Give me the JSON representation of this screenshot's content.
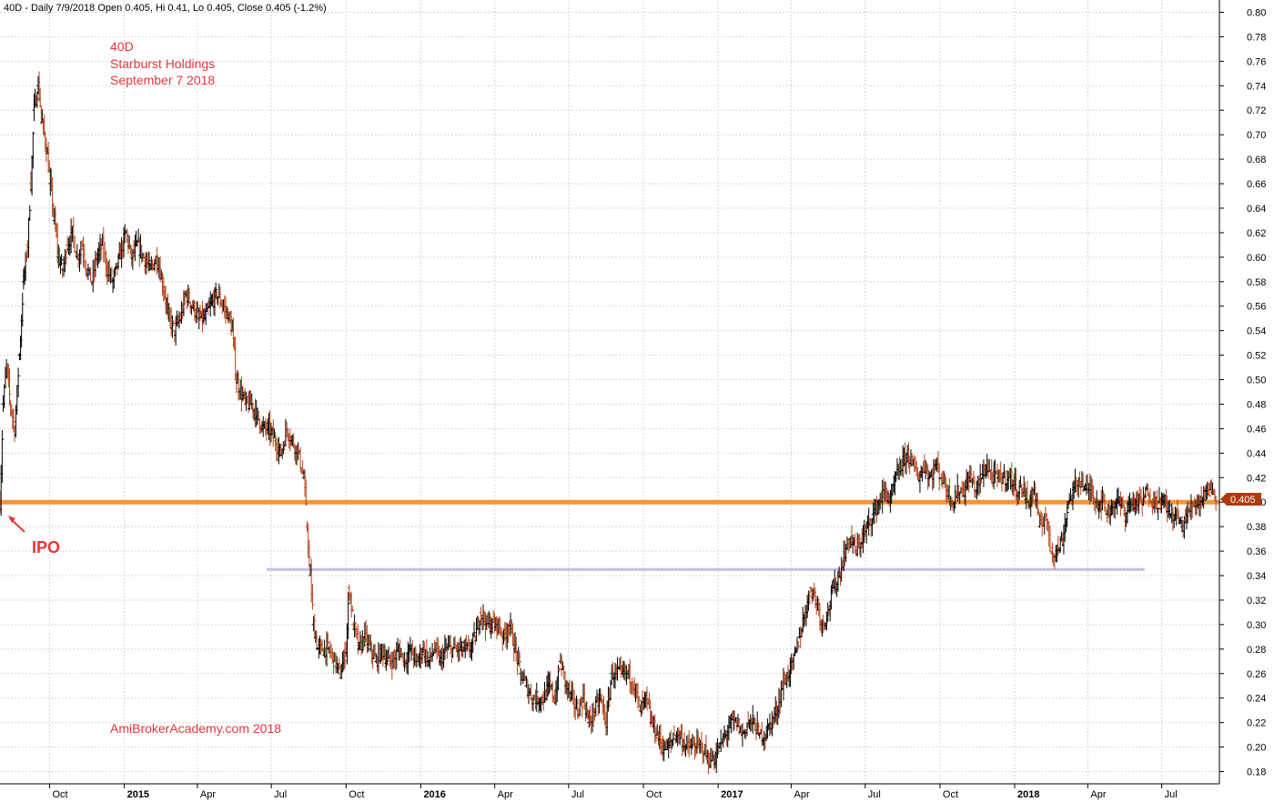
{
  "header": "40D - Daily 7/9/2018 Open 0.405, Hi 0.41, Lo 0.405, Close 0.405 (-1.2%)",
  "annotations": {
    "ticker": "40D",
    "company": "Starburst Holdings",
    "date": "September 7 2018",
    "ipo": "IPO",
    "watermark": "AmiBrokerAcademy.com  2018"
  },
  "last_price_tag": "0.405",
  "colors": {
    "up_bar": "#000000",
    "down_bar": "#b5451b",
    "ipo_line": "#f3963a",
    "support_line": "#c9bde3",
    "annotation": "#e8363a",
    "grid": "#d8d8d8",
    "price_tag": "#b03a10"
  },
  "chart_data": {
    "type": "ohlc",
    "title": "40D - Daily 7/9/2018",
    "ylim": [
      0.17,
      0.81
    ],
    "y_ticks": [
      "0.18",
      "0.20",
      "0.22",
      "0.24",
      "0.26",
      "0.28",
      "0.30",
      "0.32",
      "0.34",
      "0.36",
      "0.38",
      "0.40",
      "0.42",
      "0.44",
      "0.46",
      "0.48",
      "0.50",
      "0.52",
      "0.54",
      "0.56",
      "0.58",
      "0.60",
      "0.62",
      "0.64",
      "0.66",
      "0.68",
      "0.70",
      "0.72",
      "0.74",
      "0.76",
      "0.78",
      "0.80"
    ],
    "x_range": [
      "2014-08-01",
      "2018-09-10"
    ],
    "x_ticks": [
      {
        "label": "Oct",
        "date": "2014-10-01",
        "bold": false
      },
      {
        "label": "2015",
        "date": "2015-01-01",
        "bold": true
      },
      {
        "label": "Apr",
        "date": "2015-04-01",
        "bold": false
      },
      {
        "label": "Jul",
        "date": "2015-07-01",
        "bold": false
      },
      {
        "label": "Oct",
        "date": "2015-10-01",
        "bold": false
      },
      {
        "label": "2016",
        "date": "2016-01-01",
        "bold": true
      },
      {
        "label": "Apr",
        "date": "2016-04-01",
        "bold": false
      },
      {
        "label": "Jul",
        "date": "2016-07-01",
        "bold": false
      },
      {
        "label": "Oct",
        "date": "2016-10-01",
        "bold": false
      },
      {
        "label": "2017",
        "date": "2017-01-01",
        "bold": true
      },
      {
        "label": "Apr",
        "date": "2017-04-01",
        "bold": false
      },
      {
        "label": "Jul",
        "date": "2017-07-01",
        "bold": false
      },
      {
        "label": "Oct",
        "date": "2017-10-01",
        "bold": false
      },
      {
        "label": "2018",
        "date": "2018-01-01",
        "bold": true
      },
      {
        "label": "Apr",
        "date": "2018-04-01",
        "bold": false
      },
      {
        "label": "Jul",
        "date": "2018-07-01",
        "bold": false
      }
    ],
    "close_series": [
      [
        "2014-08-01",
        0.4
      ],
      [
        "2014-08-05",
        0.48
      ],
      [
        "2014-08-09",
        0.51
      ],
      [
        "2014-08-14",
        0.48
      ],
      [
        "2014-08-19",
        0.46
      ],
      [
        "2014-08-25",
        0.52
      ],
      [
        "2014-08-30",
        0.58
      ],
      [
        "2014-09-04",
        0.61
      ],
      [
        "2014-09-08",
        0.66
      ],
      [
        "2014-09-12",
        0.72
      ],
      [
        "2014-09-17",
        0.74
      ],
      [
        "2014-09-22",
        0.71
      ],
      [
        "2014-09-27",
        0.69
      ],
      [
        "2014-10-02",
        0.66
      ],
      [
        "2014-10-07",
        0.63
      ],
      [
        "2014-10-12",
        0.6
      ],
      [
        "2014-10-17",
        0.59
      ],
      [
        "2014-10-23",
        0.61
      ],
      [
        "2014-10-29",
        0.62
      ],
      [
        "2014-11-04",
        0.6
      ],
      [
        "2014-11-10",
        0.61
      ],
      [
        "2014-11-16",
        0.59
      ],
      [
        "2014-11-22",
        0.58
      ],
      [
        "2014-11-28",
        0.6
      ],
      [
        "2014-12-05",
        0.61
      ],
      [
        "2014-12-11",
        0.59
      ],
      [
        "2014-12-18",
        0.58
      ],
      [
        "2014-12-26",
        0.6
      ],
      [
        "2015-01-03",
        0.62
      ],
      [
        "2015-01-10",
        0.6
      ],
      [
        "2015-01-17",
        0.61
      ],
      [
        "2015-01-25",
        0.6
      ],
      [
        "2015-02-02",
        0.59
      ],
      [
        "2015-02-10",
        0.6
      ],
      [
        "2015-02-17",
        0.58
      ],
      [
        "2015-02-25",
        0.55
      ],
      [
        "2015-03-04",
        0.54
      ],
      [
        "2015-03-11",
        0.55
      ],
      [
        "2015-03-18",
        0.57
      ],
      [
        "2015-03-26",
        0.56
      ],
      [
        "2015-04-03",
        0.55
      ],
      [
        "2015-04-10",
        0.55
      ],
      [
        "2015-04-17",
        0.56
      ],
      [
        "2015-04-25",
        0.57
      ],
      [
        "2015-05-03",
        0.56
      ],
      [
        "2015-05-10",
        0.55
      ],
      [
        "2015-05-14",
        0.54
      ],
      [
        "2015-05-19",
        0.5
      ],
      [
        "2015-05-24",
        0.49
      ],
      [
        "2015-05-31",
        0.48
      ],
      [
        "2015-06-07",
        0.48
      ],
      [
        "2015-06-14",
        0.47
      ],
      [
        "2015-06-21",
        0.46
      ],
      [
        "2015-06-28",
        0.46
      ],
      [
        "2015-07-06",
        0.45
      ],
      [
        "2015-07-13",
        0.44
      ],
      [
        "2015-07-20",
        0.46
      ],
      [
        "2015-07-27",
        0.45
      ],
      [
        "2015-08-03",
        0.44
      ],
      [
        "2015-08-10",
        0.42
      ],
      [
        "2015-08-14",
        0.38
      ],
      [
        "2015-08-18",
        0.34
      ],
      [
        "2015-08-22",
        0.3
      ],
      [
        "2015-08-27",
        0.28
      ],
      [
        "2015-09-03",
        0.28
      ],
      [
        "2015-09-10",
        0.28
      ],
      [
        "2015-09-17",
        0.27
      ],
      [
        "2015-09-24",
        0.26
      ],
      [
        "2015-10-01",
        0.28
      ],
      [
        "2015-10-05",
        0.33
      ],
      [
        "2015-10-10",
        0.3
      ],
      [
        "2015-10-17",
        0.28
      ],
      [
        "2015-10-24",
        0.29
      ],
      [
        "2015-10-31",
        0.28
      ],
      [
        "2015-11-07",
        0.27
      ],
      [
        "2015-11-14",
        0.28
      ],
      [
        "2015-11-21",
        0.27
      ],
      [
        "2015-11-28",
        0.27
      ],
      [
        "2015-12-05",
        0.28
      ],
      [
        "2015-12-12",
        0.27
      ],
      [
        "2015-12-19",
        0.28
      ],
      [
        "2015-12-27",
        0.27
      ],
      [
        "2016-01-04",
        0.28
      ],
      [
        "2016-01-11",
        0.27
      ],
      [
        "2016-01-18",
        0.28
      ],
      [
        "2016-01-25",
        0.27
      ],
      [
        "2016-02-01",
        0.28
      ],
      [
        "2016-02-08",
        0.28
      ],
      [
        "2016-02-15",
        0.28
      ],
      [
        "2016-02-22",
        0.28
      ],
      [
        "2016-03-01",
        0.28
      ],
      [
        "2016-03-08",
        0.29
      ],
      [
        "2016-03-15",
        0.31
      ],
      [
        "2016-03-22",
        0.3
      ],
      [
        "2016-03-29",
        0.3
      ],
      [
        "2016-04-05",
        0.3
      ],
      [
        "2016-04-12",
        0.29
      ],
      [
        "2016-04-19",
        0.3
      ],
      [
        "2016-04-26",
        0.28
      ],
      [
        "2016-05-03",
        0.26
      ],
      [
        "2016-05-10",
        0.25
      ],
      [
        "2016-05-17",
        0.24
      ],
      [
        "2016-05-24",
        0.24
      ],
      [
        "2016-05-31",
        0.24
      ],
      [
        "2016-06-07",
        0.25
      ],
      [
        "2016-06-14",
        0.24
      ],
      [
        "2016-06-21",
        0.27
      ],
      [
        "2016-06-28",
        0.25
      ],
      [
        "2016-07-05",
        0.24
      ],
      [
        "2016-07-12",
        0.23
      ],
      [
        "2016-07-19",
        0.24
      ],
      [
        "2016-07-26",
        0.22
      ],
      [
        "2016-08-02",
        0.23
      ],
      [
        "2016-08-09",
        0.24
      ],
      [
        "2016-08-16",
        0.22
      ],
      [
        "2016-08-23",
        0.26
      ],
      [
        "2016-08-30",
        0.26
      ],
      [
        "2016-09-06",
        0.26
      ],
      [
        "2016-09-13",
        0.26
      ],
      [
        "2016-09-20",
        0.25
      ],
      [
        "2016-09-27",
        0.23
      ],
      [
        "2016-10-04",
        0.24
      ],
      [
        "2016-10-11",
        0.22
      ],
      [
        "2016-10-18",
        0.21
      ],
      [
        "2016-10-25",
        0.2
      ],
      [
        "2016-11-01",
        0.2
      ],
      [
        "2016-11-08",
        0.21
      ],
      [
        "2016-11-15",
        0.21
      ],
      [
        "2016-11-22",
        0.2
      ],
      [
        "2016-11-29",
        0.2
      ],
      [
        "2016-12-06",
        0.2
      ],
      [
        "2016-12-13",
        0.2
      ],
      [
        "2016-12-20",
        0.19
      ],
      [
        "2016-12-27",
        0.19
      ],
      [
        "2017-01-03",
        0.2
      ],
      [
        "2017-01-10",
        0.21
      ],
      [
        "2017-01-17",
        0.22
      ],
      [
        "2017-01-24",
        0.22
      ],
      [
        "2017-01-31",
        0.21
      ],
      [
        "2017-02-07",
        0.22
      ],
      [
        "2017-02-14",
        0.22
      ],
      [
        "2017-02-21",
        0.21
      ],
      [
        "2017-02-28",
        0.21
      ],
      [
        "2017-03-07",
        0.22
      ],
      [
        "2017-03-14",
        0.23
      ],
      [
        "2017-03-21",
        0.25
      ],
      [
        "2017-03-28",
        0.26
      ],
      [
        "2017-04-04",
        0.27
      ],
      [
        "2017-04-11",
        0.29
      ],
      [
        "2017-04-18",
        0.31
      ],
      [
        "2017-04-25",
        0.33
      ],
      [
        "2017-05-02",
        0.32
      ],
      [
        "2017-05-09",
        0.3
      ],
      [
        "2017-05-16",
        0.31
      ],
      [
        "2017-05-23",
        0.33
      ],
      [
        "2017-05-30",
        0.34
      ],
      [
        "2017-06-06",
        0.36
      ],
      [
        "2017-06-13",
        0.37
      ],
      [
        "2017-06-20",
        0.36
      ],
      [
        "2017-06-27",
        0.37
      ],
      [
        "2017-07-04",
        0.38
      ],
      [
        "2017-07-11",
        0.39
      ],
      [
        "2017-07-18",
        0.4
      ],
      [
        "2017-07-25",
        0.41
      ],
      [
        "2017-08-01",
        0.4
      ],
      [
        "2017-08-08",
        0.42
      ],
      [
        "2017-08-15",
        0.43
      ],
      [
        "2017-08-22",
        0.44
      ],
      [
        "2017-08-29",
        0.43
      ],
      [
        "2017-09-05",
        0.42
      ],
      [
        "2017-09-12",
        0.43
      ],
      [
        "2017-09-19",
        0.42
      ],
      [
        "2017-09-26",
        0.43
      ],
      [
        "2017-10-03",
        0.42
      ],
      [
        "2017-10-10",
        0.41
      ],
      [
        "2017-10-17",
        0.4
      ],
      [
        "2017-10-24",
        0.41
      ],
      [
        "2017-10-31",
        0.41
      ],
      [
        "2017-11-07",
        0.42
      ],
      [
        "2017-11-14",
        0.41
      ],
      [
        "2017-11-21",
        0.42
      ],
      [
        "2017-11-28",
        0.43
      ],
      [
        "2017-12-05",
        0.42
      ],
      [
        "2017-12-12",
        0.42
      ],
      [
        "2017-12-19",
        0.42
      ],
      [
        "2017-12-27",
        0.42
      ],
      [
        "2018-01-04",
        0.41
      ],
      [
        "2018-01-11",
        0.41
      ],
      [
        "2018-01-18",
        0.4
      ],
      [
        "2018-01-25",
        0.41
      ],
      [
        "2018-02-01",
        0.38
      ],
      [
        "2018-02-08",
        0.39
      ],
      [
        "2018-02-15",
        0.36
      ],
      [
        "2018-02-22",
        0.36
      ],
      [
        "2018-03-01",
        0.37
      ],
      [
        "2018-03-08",
        0.4
      ],
      [
        "2018-03-15",
        0.41
      ],
      [
        "2018-03-22",
        0.42
      ],
      [
        "2018-03-29",
        0.41
      ],
      [
        "2018-04-05",
        0.41
      ],
      [
        "2018-04-12",
        0.4
      ],
      [
        "2018-04-19",
        0.4
      ],
      [
        "2018-04-26",
        0.39
      ],
      [
        "2018-05-03",
        0.4
      ],
      [
        "2018-05-10",
        0.4
      ],
      [
        "2018-05-17",
        0.39
      ],
      [
        "2018-05-24",
        0.4
      ],
      [
        "2018-05-31",
        0.4
      ],
      [
        "2018-06-07",
        0.4
      ],
      [
        "2018-06-14",
        0.41
      ],
      [
        "2018-06-21",
        0.4
      ],
      [
        "2018-06-28",
        0.4
      ],
      [
        "2018-07-05",
        0.4
      ],
      [
        "2018-07-12",
        0.39
      ],
      [
        "2018-07-19",
        0.39
      ],
      [
        "2018-07-26",
        0.38
      ],
      [
        "2018-08-02",
        0.39
      ],
      [
        "2018-08-09",
        0.4
      ],
      [
        "2018-08-16",
        0.4
      ],
      [
        "2018-08-23",
        0.41
      ],
      [
        "2018-08-30",
        0.41
      ],
      [
        "2018-09-07",
        0.405
      ]
    ],
    "horizontal_lines": [
      {
        "y": 0.4,
        "from": "2014-08-01",
        "to": "2018-09-10",
        "color_key": "ipo_line",
        "label": ""
      },
      {
        "y": 0.345,
        "from": "2015-06-25",
        "to": "2018-06-10",
        "color_key": "support_line",
        "label": ""
      }
    ],
    "grid": true
  }
}
